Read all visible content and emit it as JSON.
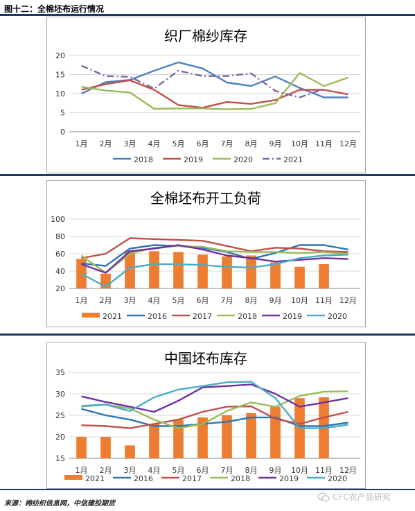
{
  "figure_title": "图十二：全棉坯布运行情况",
  "source": "来源：棉纺织信息网，中信建投期货",
  "watermark": "CFC农产品研究",
  "colors": {
    "2016": "#2e75b6",
    "2017": "#c0504d",
    "2018": "#4f81bd",
    "2019": "#c0504d",
    "2020": "#9bbb59",
    "2021": "#8064a2",
    "bar": "#ed7d31",
    "teal": "#4bacc6",
    "purple": "#7030a0",
    "green": "#9bbb59"
  },
  "chart_data": [
    {
      "type": "line",
      "title": "织厂棉纱库存",
      "categories": [
        "1月",
        "2月",
        "3月",
        "4月",
        "5月",
        "6月",
        "7月",
        "8月",
        "9月",
        "10月",
        "11月",
        "12月"
      ],
      "ylim": [
        0,
        20
      ],
      "yticks": [
        0,
        5,
        10,
        15,
        20
      ],
      "grid": true,
      "legend_position": "bottom",
      "series": [
        {
          "name": "2018",
          "color": "#4f81bd",
          "dash": "",
          "values": [
            10,
            13,
            13.6,
            16,
            18.2,
            16.6,
            12.9,
            12,
            14.5,
            11.5,
            9,
            9
          ]
        },
        {
          "name": "2019",
          "color": "#c0504d",
          "dash": "",
          "values": [
            11,
            12.5,
            13.5,
            11,
            7,
            6.3,
            7.8,
            7.3,
            8.3,
            11,
            11,
            9.8
          ]
        },
        {
          "name": "2020",
          "color": "#9bbb59",
          "dash": "",
          "values": [
            11.8,
            10.8,
            10.3,
            6,
            6.1,
            6.1,
            5.9,
            6,
            7.5,
            15.4,
            12,
            14.2
          ]
        },
        {
          "name": "2021",
          "color": "#8064a2",
          "dash": "10,4,2,4",
          "values": [
            17.3,
            14.6,
            14.4,
            11.3,
            16,
            14.6,
            14.6,
            15.3,
            10.7,
            9,
            11.2,
            null
          ]
        }
      ]
    },
    {
      "type": "bar+line",
      "title": "全棉坯布开工负荷",
      "categories": [
        "1月",
        "2月",
        "3月",
        "4月",
        "5月",
        "6月",
        "7月",
        "8月",
        "9月",
        "10月",
        "11月",
        "12月"
      ],
      "ylim": [
        20,
        100
      ],
      "yticks": [
        20,
        40,
        60,
        80,
        100
      ],
      "grid": true,
      "legend_position": "bottom",
      "bars": {
        "name": "2021",
        "color": "#ed7d31",
        "values": [
          54,
          37,
          64,
          63,
          62,
          59,
          57,
          58,
          50,
          45,
          48,
          null
        ]
      },
      "series": [
        {
          "name": "2016",
          "color": "#2e75b6",
          "values": [
            49,
            46,
            66,
            70,
            69,
            67,
            62,
            54,
            61,
            70,
            70,
            65
          ]
        },
        {
          "name": "2017",
          "color": "#c0504d",
          "values": [
            55,
            60,
            78,
            77,
            76,
            75,
            69,
            63,
            67,
            66,
            63,
            62
          ]
        },
        {
          "name": "2018",
          "color": "#9bbb59",
          "values": [
            58,
            38,
            60,
            67,
            69,
            68,
            63,
            62,
            62,
            61,
            62,
            60
          ]
        },
        {
          "name": "2019",
          "color": "#7030a0",
          "values": [
            48,
            38,
            63,
            66,
            70,
            65,
            58,
            55,
            51,
            53,
            55,
            54
          ]
        },
        {
          "name": "2020",
          "color": "#4bacc6",
          "values": [
            37,
            22,
            44,
            48,
            48,
            47,
            45,
            44,
            48,
            55,
            58,
            59
          ]
        }
      ]
    },
    {
      "type": "bar+line",
      "title": "中国坯布库存",
      "categories": [
        "1月",
        "2月",
        "3月",
        "4月",
        "5月",
        "6月",
        "7月",
        "8月",
        "9月",
        "10月",
        "11月",
        "12月"
      ],
      "ylim": [
        15,
        35
      ],
      "yticks": [
        15,
        20,
        25,
        30,
        35
      ],
      "grid": true,
      "legend_position": "bottom",
      "bars": {
        "name": "2021",
        "color": "#ed7d31",
        "values": [
          20,
          20,
          18,
          23,
          24,
          24.5,
          25,
          25.5,
          27,
          29,
          29.2,
          null
        ]
      },
      "series": [
        {
          "name": "2016",
          "color": "#2e75b6",
          "values": [
            26.5,
            25,
            24,
            22.5,
            22.5,
            23,
            23.5,
            24.5,
            24.5,
            22.5,
            22.5,
            23.3
          ]
        },
        {
          "name": "2017",
          "color": "#c0504d",
          "values": [
            22.7,
            22.5,
            22,
            23,
            24,
            25.8,
            27,
            27.1,
            24.2,
            23,
            24.5,
            25.8
          ]
        },
        {
          "name": "2018",
          "color": "#9bbb59",
          "values": [
            27,
            27.5,
            26.6,
            24,
            22,
            23,
            26,
            28,
            27,
            29.5,
            30.5,
            30.6
          ]
        },
        {
          "name": "2019",
          "color": "#7030a0",
          "values": [
            29.4,
            28.1,
            27,
            25.8,
            28.4,
            31.5,
            31.8,
            32.2,
            30,
            27,
            28,
            29
          ]
        },
        {
          "name": "2020",
          "color": "#4bacc6",
          "values": [
            27.2,
            27.5,
            26,
            29.2,
            31,
            31.8,
            32.7,
            32.8,
            29,
            22,
            22,
            22.8
          ]
        }
      ]
    }
  ]
}
